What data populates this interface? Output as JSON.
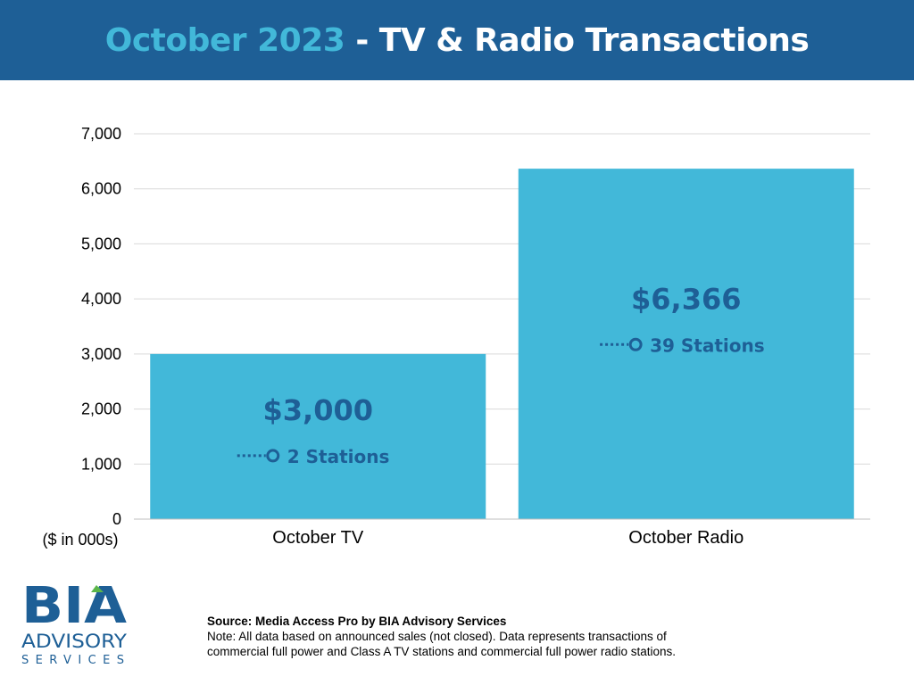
{
  "header": {
    "title_highlight": "October 2023",
    "title_rest": " - TV & Radio Transactions",
    "background_color": "#1e5f96",
    "highlight_color": "#42b8d9"
  },
  "chart_data": {
    "type": "bar",
    "categories": [
      "October TV",
      "October Radio"
    ],
    "values": [
      3000,
      6366
    ],
    "value_labels": [
      "$3,000",
      "$6,366"
    ],
    "station_labels": [
      "2 Stations",
      "39 Stations"
    ],
    "ylabel": "($ in 000s)",
    "ylim": [
      0,
      7000
    ],
    "yticks": [
      0,
      1000,
      2000,
      3000,
      4000,
      5000,
      6000,
      7000
    ],
    "ytick_labels": [
      "0",
      "1,000",
      "2,000",
      "3,000",
      "4,000",
      "5,000",
      "6,000",
      "7,000"
    ],
    "grid": true,
    "bar_color": "#42b8d9",
    "label_color": "#1e5f96"
  },
  "logo": {
    "line1": "BIA",
    "line2": "ADVISORY",
    "line3": "SERVICES",
    "primary_color": "#1e5f96",
    "accent_color": "#5bb64a"
  },
  "footer": {
    "source": "Source: Media Access Pro by BIA Advisory Services",
    "note_line1": "Note: All data based on announced sales (not closed).  Data represents transactions of",
    "note_line2": "commercial full power and Class A TV stations and commercial full power radio stations."
  }
}
